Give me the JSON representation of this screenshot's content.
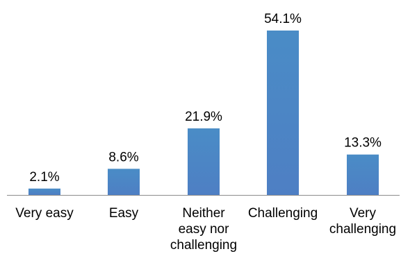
{
  "chart_data": {
    "type": "bar",
    "categories": [
      [
        "Very easy"
      ],
      [
        "Easy"
      ],
      [
        "Neither",
        "easy nor",
        "challenging"
      ],
      [
        "Challenging"
      ],
      [
        "Very",
        "challenging"
      ]
    ],
    "values": [
      2.1,
      8.6,
      21.9,
      54.1,
      13.3
    ],
    "value_labels": [
      "2.1%",
      "8.6%",
      "21.9%",
      "54.1%",
      "13.3%"
    ],
    "title": "",
    "xlabel": "",
    "ylabel": "",
    "ylim": [
      0,
      54.1
    ],
    "grid": false,
    "legend": "none",
    "colors": {
      "bar_top": "#4a8cc6",
      "bar_bottom": "#4e7fc4",
      "axis": "#8c8c8c"
    }
  }
}
